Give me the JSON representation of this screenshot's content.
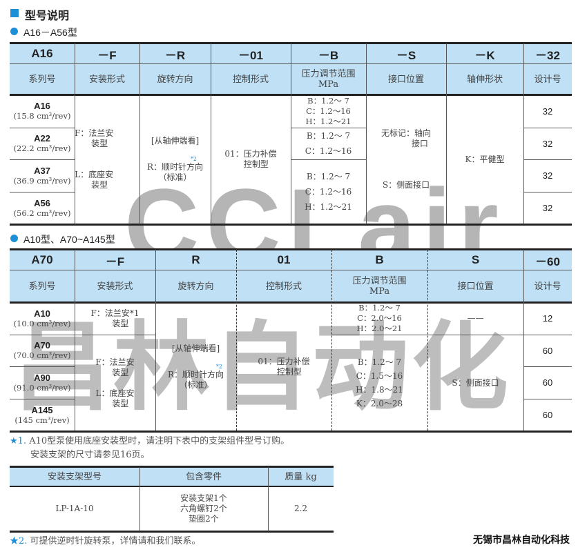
{
  "heading": "型号说明",
  "section1": "A16－A56型",
  "section2": "A10型、A70~A145型",
  "accent": "#1e8fd6",
  "header_bg": "#bfe0f5",
  "watermark": {
    "line1": "CCLair",
    "line2": "昌林自动化"
  },
  "table1": {
    "codes": [
      "A16",
      "－F",
      "－R",
      "－01",
      "－B",
      "－S",
      "－K",
      "－32"
    ],
    "headers": [
      "系列号",
      "安装形式",
      "旋转方向",
      "控制形式",
      "压力调节范围\nMPa",
      "接口位置",
      "轴伸形状",
      "设计号"
    ],
    "series": [
      {
        "name": "A16",
        "disp": "(15.8 cm³/rev)"
      },
      {
        "name": "A22",
        "disp": "(22.2 cm³/rev)"
      },
      {
        "name": "A37",
        "disp": "(36.9 cm³/rev)"
      },
      {
        "name": "A56",
        "disp": "(56.2 cm³/rev)"
      }
    ],
    "mount": "F：法兰安\n　 装型\n\n\nL：底座安\n　 装型",
    "rotation": {
      "view": "[从轴伸端看]",
      "note": "*2",
      "r": "R：顺时针方向",
      "std": "（标准）"
    },
    "control": "01：压力补偿\n　 控制型",
    "pressure": [
      "B：1.2～ 7\nC：1.2～16\nH：1.2～21",
      "B：1.2～ 7\n\nC：1.2～16",
      "B：1.2～ 7\n\nC：1.2～16\n\nH：1.2～21"
    ],
    "port": "无标记：轴向\n　　　 接口\n\n\n\nS：侧面接口",
    "shaft": "K：平健型",
    "design": [
      "32",
      "32",
      "32",
      "32"
    ]
  },
  "table2": {
    "codes": [
      "A70",
      "－F",
      "R",
      "01",
      "B",
      "S",
      "－60"
    ],
    "headers": [
      "系列号",
      "安装形式",
      "旋转方向",
      "控制形式",
      "压力调节范围\nMPa",
      "接口位置",
      "设计号"
    ],
    "series": [
      {
        "name": "A10",
        "disp": "(10.0 cm³/rev)"
      },
      {
        "name": "A70",
        "disp": "(70.0 cm³/rev)"
      },
      {
        "name": "A90",
        "disp": "(91.0 cm³/rev)"
      },
      {
        "name": "A145",
        "disp": "(145 cm³/rev)"
      }
    ],
    "mount_a10": "F：法兰安*1\n　 装型",
    "mount_rest": "F：法兰安\n　 装型\n\nL：底座安\n　 装型",
    "rotation": {
      "view": "[从轴伸端看]",
      "note": "*2",
      "r": "R：顺时针方向",
      "std": "（标准）"
    },
    "control": "01：压力补偿\n　 控制型",
    "pressure_a10": "B：1.2～ 7\nC：2.0～16\nH：2.0～21",
    "pressure_rest": "B：1.2～ 7\n\nC：1.5～16\n\nH：1.8～21\n\nK：2.0～28",
    "port_a10": "——",
    "port_rest": "S：侧面接口",
    "design": [
      "12",
      "60",
      "60",
      "60"
    ]
  },
  "notes": {
    "n1_star": "★1.",
    "n1_line1": "A10型泵使用底座安装型时，请注明下表中的支架组件型号订购。",
    "n1_line2": "安装支架的尺寸请参见16页。",
    "n2_star": "★2.",
    "n2": "可提供逆时针旋转泵，详情请和我们联系。"
  },
  "table3": {
    "headers": [
      "安装支架型号",
      "包含零件",
      "质量  kg"
    ],
    "row": {
      "model": "LP-1A-10",
      "parts": "安装支架1个\n六角螺钉2个\n垫圈2个",
      "mass": "2.2"
    }
  },
  "company": "无锡市昌林自动化科技"
}
